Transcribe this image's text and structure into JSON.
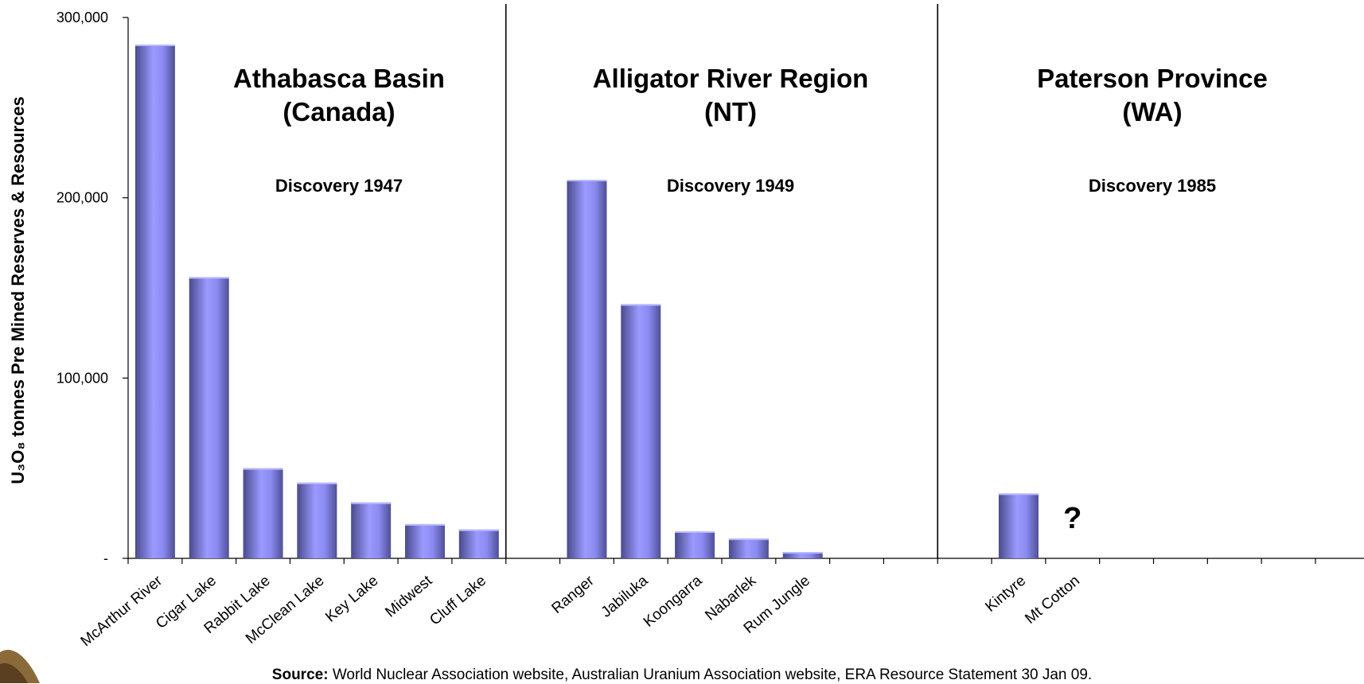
{
  "chart_data": {
    "type": "bar",
    "ylabel": "U₃O₈ tonnes Pre Mined Reserves & Resources",
    "ylim": [
      0,
      300000
    ],
    "yticks": [
      {
        "value": 0,
        "label": "-"
      },
      {
        "value": 100000,
        "label": "100,000"
      },
      {
        "value": 200000,
        "label": "200,000"
      },
      {
        "value": 300000,
        "label": "300,000"
      }
    ],
    "grid": false,
    "bar_color": "#8A8AF0",
    "slot_count": 23,
    "categories": [
      {
        "name": "McArthur River",
        "value": 285000,
        "slot": 0
      },
      {
        "name": "Cigar Lake",
        "value": 156000,
        "slot": 1
      },
      {
        "name": "Rabbit Lake",
        "value": 50000,
        "slot": 2
      },
      {
        "name": "McClean Lake",
        "value": 42000,
        "slot": 3
      },
      {
        "name": "Key Lake",
        "value": 31000,
        "slot": 4
      },
      {
        "name": "Midwest",
        "value": 19000,
        "slot": 5
      },
      {
        "name": "Cluff Lake",
        "value": 16000,
        "slot": 6
      },
      {
        "name": "Ranger",
        "value": 210000,
        "slot": 8
      },
      {
        "name": "Jabiluka",
        "value": 141000,
        "slot": 9
      },
      {
        "name": "Koongarra",
        "value": 15000,
        "slot": 10
      },
      {
        "name": "Nabarlek",
        "value": 11000,
        "slot": 11
      },
      {
        "name": "Rum Jungle",
        "value": 3500,
        "slot": 12
      },
      {
        "name": "Kintyre",
        "value": 36000,
        "slot": 16
      },
      {
        "name": "Mt Cotton",
        "value": null,
        "slot": 17
      }
    ],
    "regions": [
      {
        "title_line1": "Athabasca Basin",
        "title_line2": "(Canada)",
        "discovery": "Discovery 1947",
        "start_slot": 0,
        "end_slot": 7
      },
      {
        "title_line1": "Alligator River Region",
        "title_line2": "(NT)",
        "discovery": "Discovery 1949",
        "start_slot": 7,
        "end_slot": 15
      },
      {
        "title_line1": "Paterson Province",
        "title_line2": "(WA)",
        "discovery": "Discovery 1985",
        "start_slot": 15,
        "end_slot": 23
      }
    ],
    "annotations": [
      {
        "text": "?",
        "slot": 17
      }
    ]
  },
  "source": {
    "label": "Source:",
    "text": " World Nuclear Association website, Australian Uranium Association website, ERA Resource Statement 30 Jan 09."
  }
}
